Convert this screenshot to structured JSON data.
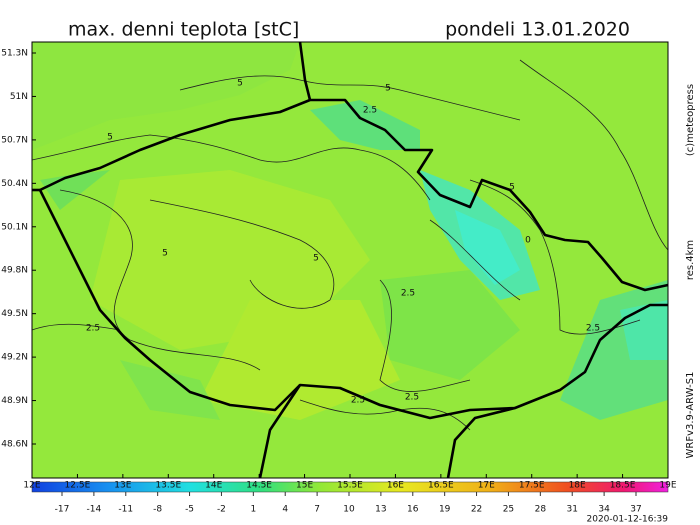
{
  "header": {
    "title": "max. denni teplota [stC]",
    "date": "pondeli 13.01.2020"
  },
  "map": {
    "lat_labels": [
      "51.3N",
      "51N",
      "50.7N",
      "50.4N",
      "50.1N",
      "49.8N",
      "49.5N",
      "49.2N",
      "48.9N",
      "48.6N"
    ],
    "lon_labels": [
      "12E",
      "12.5E",
      "13E",
      "13.5E",
      "14E",
      "14.5E",
      "15E",
      "15.5E",
      "16E",
      "16.5E",
      "17E",
      "17.5E",
      "18E",
      "18.5E",
      "19E"
    ],
    "contour_labels": [
      5,
      5,
      2.5,
      5,
      5,
      0,
      5,
      5,
      2.5,
      2.5,
      2.5,
      2.5,
      2.5
    ]
  },
  "colorbar": {
    "labels": [
      -17,
      -14,
      -11,
      -8,
      -5,
      -2,
      1,
      4,
      7,
      10,
      13,
      16,
      19,
      22,
      25,
      28,
      31,
      34,
      37
    ]
  },
  "side": {
    "copyright": "(c)meteopress",
    "resolution": "res.4km",
    "model": "WRFv3.9-ARW-S1"
  },
  "footer": {
    "timestamp": "2020-01-12-16:39"
  }
}
